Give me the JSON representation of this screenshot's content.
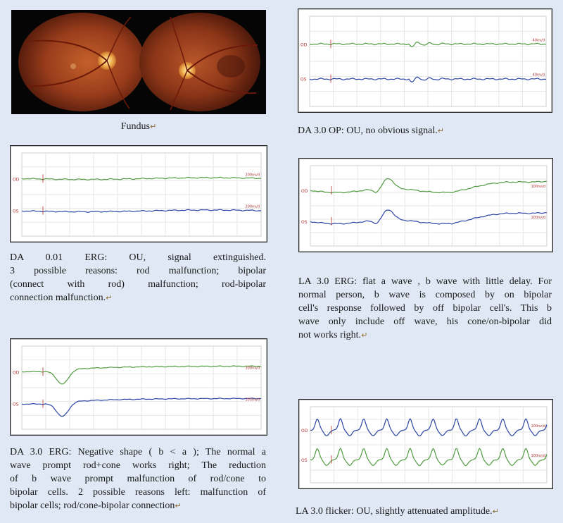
{
  "fundus": {
    "caption": "Fundus",
    "images": [
      {
        "label": "right eye fundus"
      },
      {
        "label": "left eye fundus"
      }
    ]
  },
  "panels": [
    {
      "id": "da001",
      "rows": [
        {
          "eye": "OD",
          "color": "#4f9b3f",
          "scale": "200nv/d"
        },
        {
          "eye": "OS",
          "color": "#2a44a3",
          "scale": "200nv/d"
        }
      ],
      "caption_lines": [
        "DA 0.01 ERG: OU, signal extinguished.",
        "3 possible reasons: rod malfunction; bipolar",
        "(connect with rod) malfunction; rod-bipolar",
        "connection malfunction."
      ]
    },
    {
      "id": "da30",
      "rows": [
        {
          "eye": "OD",
          "color": "#4f9b3f",
          "scale": "300nv/d"
        },
        {
          "eye": "OS",
          "color": "#2a44a3",
          "scale": "300nv/d"
        }
      ],
      "caption_lines": [
        "DA 3.0 ERG: Negative shape ( b < a ); The normal a",
        "wave prompt rod+cone works right; The reduction",
        "of b wave prompt malfunction of rod/cone to",
        "bipolar cells. 2 possible reasons left: malfunction of",
        "bipolar cells; rod/cone-bipolar connection"
      ]
    },
    {
      "id": "op",
      "rows": [
        {
          "eye": "OD",
          "color": "#4f9b3f",
          "scale": "40nv/d"
        },
        {
          "eye": "OS",
          "color": "#2a44a3",
          "scale": "40nv/d"
        }
      ],
      "caption_lines": [
        "DA 3.0 OP: OU, no obvious signal."
      ]
    },
    {
      "id": "la30",
      "rows": [
        {
          "eye": "OD",
          "color": "#4f9b3f",
          "scale": "100nv/d"
        },
        {
          "eye": "OS",
          "color": "#2a44a3",
          "scale": "100nv/d"
        }
      ],
      "caption_lines": [
        "LA 3.0 ERG: flat a wave , b wave with little delay. For",
        "normal person, b wave is composed by on bipolar",
        "cell's response followed by off bipolar cell's. This b",
        "wave only include off wave, his cone/on-bipolar did",
        "not works right."
      ]
    },
    {
      "id": "flicker",
      "rows": [
        {
          "eye": "OD",
          "color": "#2a44a3",
          "scale": "100nv/d"
        },
        {
          "eye": "OS",
          "color": "#4f9b3f",
          "scale": "100nv/d"
        }
      ],
      "caption_lines": [
        "LA 3.0 flicker: OU, slightly attenuated amplitude."
      ]
    }
  ]
}
